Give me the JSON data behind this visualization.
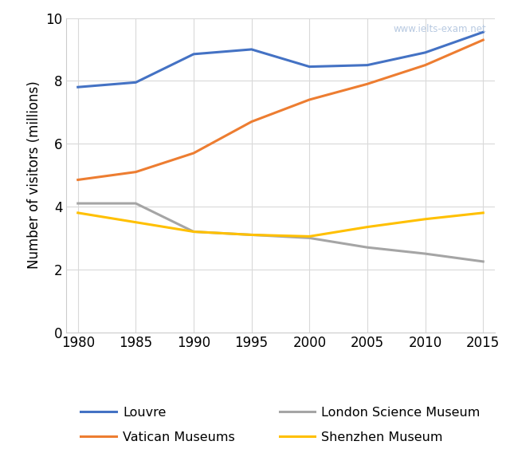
{
  "years": [
    1980,
    1985,
    1990,
    1995,
    2000,
    2005,
    2010,
    2015
  ],
  "louvre": [
    7.8,
    7.95,
    8.85,
    9.0,
    8.45,
    8.5,
    8.9,
    9.55
  ],
  "vatican": [
    4.85,
    5.1,
    5.7,
    6.7,
    7.4,
    7.9,
    8.5,
    9.3
  ],
  "london_science": [
    4.1,
    4.1,
    3.2,
    3.1,
    3.0,
    2.7,
    2.5,
    2.25
  ],
  "shenzhen": [
    3.8,
    3.5,
    3.2,
    3.1,
    3.05,
    3.35,
    3.6,
    3.8
  ],
  "louvre_color": "#4472c4",
  "vatican_color": "#ed7d31",
  "london_color": "#a5a5a5",
  "shenzhen_color": "#ffc000",
  "ylabel": "Number of visitors (millions)",
  "ylim": [
    0,
    10
  ],
  "yticks": [
    0,
    2,
    4,
    6,
    8,
    10
  ],
  "xlim": [
    1979,
    2016
  ],
  "xticks": [
    1980,
    1985,
    1990,
    1995,
    2000,
    2005,
    2010,
    2015
  ],
  "watermark": "www.ielts-exam.net",
  "legend_labels": [
    "Louvre",
    "Vatican Museums",
    "London Science Museum",
    "Shenzhen Museum"
  ],
  "line_width": 2.2,
  "background_color": "#ffffff",
  "grid_color": "#d9d9d9"
}
